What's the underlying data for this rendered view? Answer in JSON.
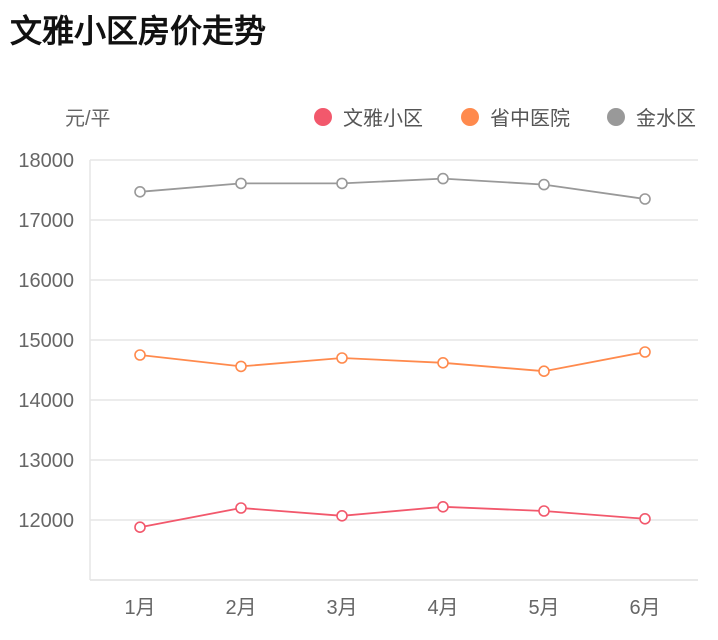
{
  "chart_data": {
    "type": "line",
    "title": "文雅小区房价走势",
    "ylabel": "元/平",
    "xlabel": "",
    "categories": [
      "1月",
      "2月",
      "3月",
      "4月",
      "5月",
      "6月"
    ],
    "ylim": [
      11000,
      18000
    ],
    "yticks": [
      12000,
      13000,
      14000,
      15000,
      16000,
      17000,
      18000
    ],
    "grid": true,
    "legend_position": "top-right",
    "series": [
      {
        "name": "文雅小区",
        "color": "#f2586c",
        "values": [
          11880,
          12200,
          12070,
          12220,
          12150,
          12020
        ]
      },
      {
        "name": "省中医院",
        "color": "#ff8a4d",
        "values": [
          14750,
          14560,
          14700,
          14620,
          14480,
          14800
        ]
      },
      {
        "name": "金水区",
        "color": "#999999",
        "values": [
          17470,
          17610,
          17610,
          17690,
          17590,
          17350
        ]
      }
    ]
  }
}
